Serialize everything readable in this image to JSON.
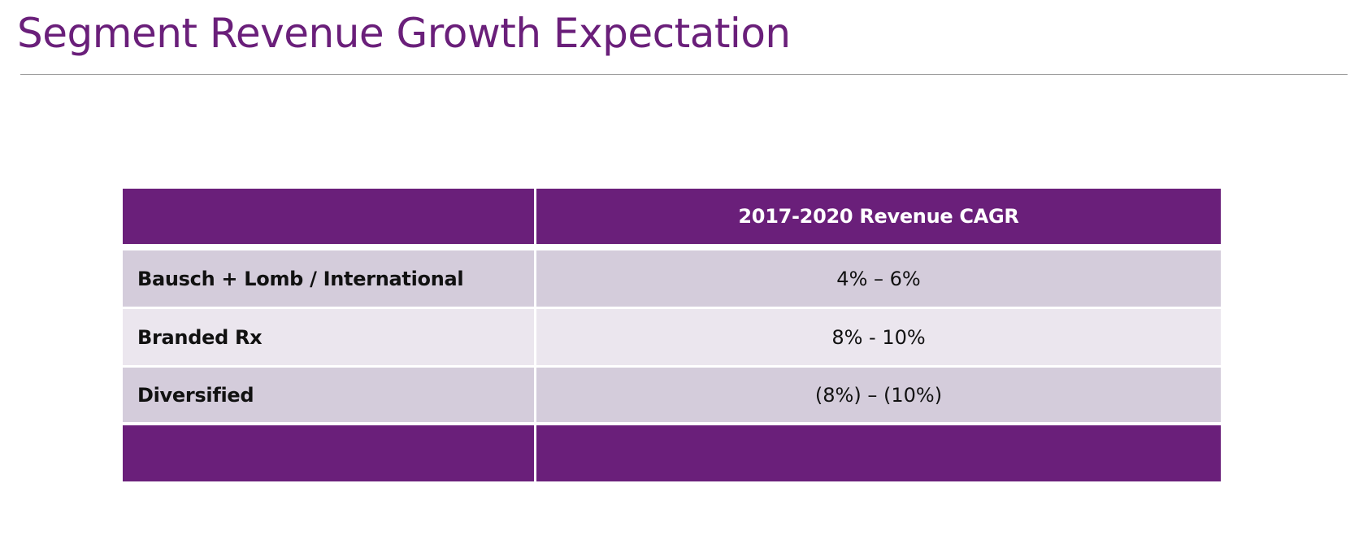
{
  "slide": {
    "title": "Segment Revenue Growth Expectation"
  },
  "table": {
    "header": {
      "col1": "",
      "col2": "2017-2020 Revenue CAGR"
    },
    "rows": [
      {
        "segment": "Bausch + Lomb / International",
        "cagr": "4% – 6%"
      },
      {
        "segment": "Branded Rx",
        "cagr": "8% - 10%"
      },
      {
        "segment": "Diversified",
        "cagr": "(8%) – (10%)"
      }
    ]
  },
  "colors": {
    "accent_purple": "#6a1f7a",
    "row_dark": "#d4ccdb",
    "row_light": "#ebe6ee",
    "title_rule": "#9b9b9b"
  }
}
